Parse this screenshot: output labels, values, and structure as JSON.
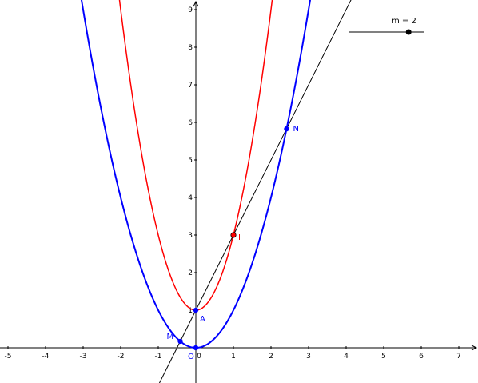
{
  "axes": {
    "x_range": [
      -5.2,
      7.5
    ],
    "y_range": [
      -1.0,
      9.3
    ],
    "x_ticks": [
      {
        "value": -5,
        "label": "-5"
      },
      {
        "value": -4,
        "label": "-4"
      },
      {
        "value": -3,
        "label": "-3"
      },
      {
        "value": -2,
        "label": "-2"
      },
      {
        "value": -1,
        "label": "-1"
      },
      {
        "value": 0,
        "label": "0"
      },
      {
        "value": 1,
        "label": "1"
      },
      {
        "value": 2,
        "label": "2"
      },
      {
        "value": 3,
        "label": "3"
      },
      {
        "value": 4,
        "label": "4"
      },
      {
        "value": 5,
        "label": "5"
      },
      {
        "value": 6,
        "label": "6"
      },
      {
        "value": 7,
        "label": "7"
      }
    ],
    "y_ticks": [
      {
        "value": 1,
        "label": "1"
      },
      {
        "value": 2,
        "label": "2"
      },
      {
        "value": 3,
        "label": "3"
      },
      {
        "value": 4,
        "label": "4"
      },
      {
        "value": 5,
        "label": "5"
      },
      {
        "value": 6,
        "label": "6"
      },
      {
        "value": 7,
        "label": "7"
      },
      {
        "value": 8,
        "label": "8"
      },
      {
        "value": 9,
        "label": "9"
      }
    ]
  },
  "curves": [
    {
      "name": "red-parabola",
      "a": 2,
      "b": 0,
      "c": 1,
      "color": "#ff0000"
    },
    {
      "name": "blue-parabola",
      "a": 1,
      "b": 0,
      "c": 0,
      "color": "#0000ff"
    }
  ],
  "line": {
    "name": "line-through-a-and-i",
    "slope": 2,
    "intercept": 1,
    "color": "#000000"
  },
  "points": [
    {
      "id": "A",
      "label": "A",
      "x": 0,
      "y": 1,
      "color": "#0000ff"
    },
    {
      "id": "I",
      "label": "I",
      "x": 1,
      "y": 3,
      "color": "#ff0000"
    },
    {
      "id": "N",
      "label": "N",
      "x": 2.414,
      "y": 5.828,
      "color": "#0000ff"
    },
    {
      "id": "M",
      "label": "M",
      "x": -0.414,
      "y": 0.172,
      "color": "#0000ff"
    },
    {
      "id": "O",
      "label": "O",
      "x": 0,
      "y": 0,
      "color": "#0000ff"
    }
  ],
  "slider": {
    "label": "m = 2",
    "value": 2,
    "min": 0,
    "max": 2.5
  }
}
